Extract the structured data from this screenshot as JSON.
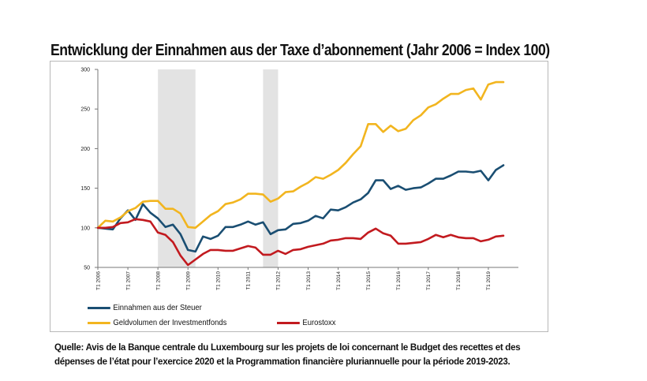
{
  "title": "Entwicklung der Einnahmen aus der Taxe d’abonnement (Jahr 2006 = Index 100)",
  "source": "Quelle: Avis de la Banque centrale du Luxembourg sur les projets de loi concernant le Budget des recettes et des dépenses de l’état pour l’exercice 2020 et la Programmation financière pluriannuelle pour la période 2019-2023.",
  "chart_data": {
    "type": "line",
    "title": "Entwicklung der Einnahmen aus der Taxe d’abonnement (Jahr 2006 = Index 100)",
    "xlabel": "",
    "ylabel": "",
    "ylim": [
      50,
      300
    ],
    "yticks": [
      "50",
      "100",
      "150",
      "200",
      "250",
      "300"
    ],
    "xlim": [
      2006.0,
      2020.0
    ],
    "xticks": [
      {
        "x": 2006.0,
        "label": "T1 2006"
      },
      {
        "x": 2007.0,
        "label": "T1 2007"
      },
      {
        "x": 2008.0,
        "label": "T1 2008"
      },
      {
        "x": 2009.0,
        "label": "T1 2009"
      },
      {
        "x": 2010.0,
        "label": "T1 2010"
      },
      {
        "x": 2011.0,
        "label": "T1 2011"
      },
      {
        "x": 2012.0,
        "label": "T1 2012"
      },
      {
        "x": 2013.0,
        "label": "T1 2013"
      },
      {
        "x": 2014.0,
        "label": "T1 2014"
      },
      {
        "x": 2015.0,
        "label": "T1 2015"
      },
      {
        "x": 2016.0,
        "label": "T1 2016"
      },
      {
        "x": 2017.0,
        "label": "T1 2017"
      },
      {
        "x": 2018.0,
        "label": "T1 2018"
      },
      {
        "x": 2019.0,
        "label": "T1 2019"
      }
    ],
    "grid": false,
    "recession_bands": [
      [
        2008.0,
        2009.25
      ],
      [
        2011.5,
        2012.0
      ]
    ],
    "legend_placement": "bottom",
    "x": [
      2006.0,
      2006.25,
      2006.5,
      2006.75,
      2007.0,
      2007.25,
      2007.5,
      2007.75,
      2008.0,
      2008.25,
      2008.5,
      2008.75,
      2009.0,
      2009.25,
      2009.5,
      2009.75,
      2010.0,
      2010.25,
      2010.5,
      2010.75,
      2011.0,
      2011.25,
      2011.5,
      2011.75,
      2012.0,
      2012.25,
      2012.5,
      2012.75,
      2013.0,
      2013.25,
      2013.5,
      2013.75,
      2014.0,
      2014.25,
      2014.5,
      2014.75,
      2015.0,
      2015.25,
      2015.5,
      2015.75,
      2016.0,
      2016.25,
      2016.5,
      2016.75,
      2017.0,
      2017.25,
      2017.5,
      2017.75,
      2018.0,
      2018.25,
      2018.5,
      2018.75,
      2019.0,
      2019.25,
      2019.5
    ],
    "series": [
      {
        "name": "Einnahmen aus der Steuer",
        "color": "#1a4e72",
        "values": [
          100,
          99,
          98,
          112,
          122,
          110,
          130,
          119,
          112,
          101,
          104,
          92,
          72,
          70,
          89,
          86,
          90,
          101,
          101,
          104,
          108,
          104,
          107,
          92,
          97,
          98,
          105,
          106,
          109,
          115,
          112,
          123,
          122,
          126,
          132,
          136,
          144,
          160,
          160,
          149,
          153,
          148,
          150,
          151,
          156,
          162,
          162,
          166,
          171,
          171,
          170,
          172,
          160,
          173,
          179
        ]
      },
      {
        "name": "Geldvolumen der Investmentfonds",
        "color": "#f2b51f",
        "values": [
          100,
          109,
          108,
          113,
          121,
          125,
          133,
          134,
          134,
          124,
          124,
          118,
          101,
          100,
          108,
          116,
          121,
          130,
          132,
          136,
          143,
          143,
          142,
          133,
          137,
          145,
          146,
          152,
          157,
          164,
          162,
          167,
          173,
          182,
          193,
          203,
          231,
          231,
          221,
          229,
          222,
          225,
          236,
          242,
          252,
          256,
          263,
          269,
          269,
          274,
          276,
          262,
          281,
          284,
          284
        ]
      },
      {
        "name": "Eurostoxx",
        "color": "#c21a1f",
        "values": [
          100,
          100,
          101,
          106,
          107,
          111,
          110,
          108,
          94,
          91,
          82,
          65,
          53,
          60,
          67,
          72,
          72,
          71,
          71,
          74,
          77,
          75,
          66,
          66,
          71,
          67,
          72,
          73,
          76,
          78,
          80,
          84,
          85,
          87,
          87,
          86,
          94,
          99,
          93,
          90,
          80,
          80,
          81,
          82,
          86,
          91,
          88,
          91,
          88,
          87,
          87,
          83,
          85,
          89,
          90
        ]
      }
    ]
  }
}
